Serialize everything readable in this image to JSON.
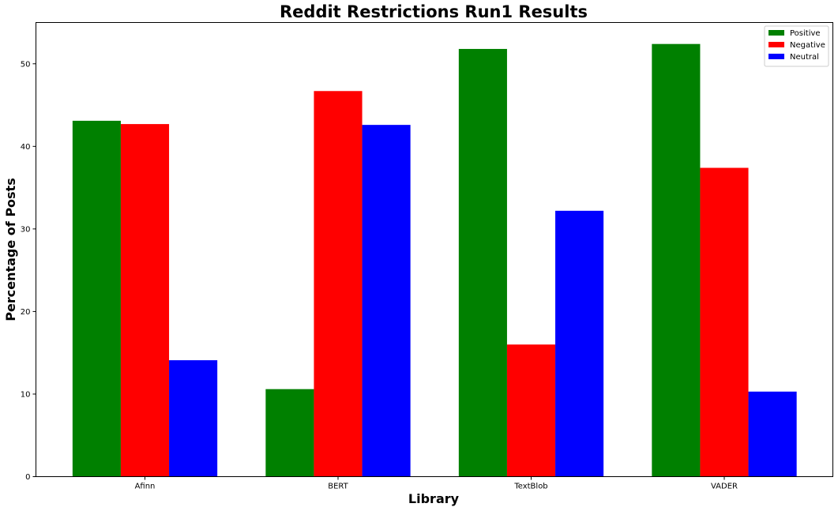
{
  "chart_data": {
    "type": "bar",
    "title": "Reddit Restrictions Run1 Results",
    "xlabel": "Library",
    "ylabel": "Percentage of Posts",
    "categories": [
      "Afinn",
      "BERT",
      "TextBlob",
      "VADER"
    ],
    "series": [
      {
        "name": "Positive",
        "color": "#008000",
        "values": [
          43.1,
          10.6,
          51.8,
          52.4
        ]
      },
      {
        "name": "Negative",
        "color": "#ff0000",
        "values": [
          42.7,
          46.7,
          16.0,
          37.4
        ]
      },
      {
        "name": "Neutral",
        "color": "#0000ff",
        "values": [
          14.1,
          42.6,
          32.2,
          10.3
        ]
      }
    ],
    "ylim": [
      0,
      55
    ],
    "yticks": [
      0,
      10,
      20,
      30,
      40,
      50
    ],
    "grid": false,
    "legend": "top-right"
  }
}
